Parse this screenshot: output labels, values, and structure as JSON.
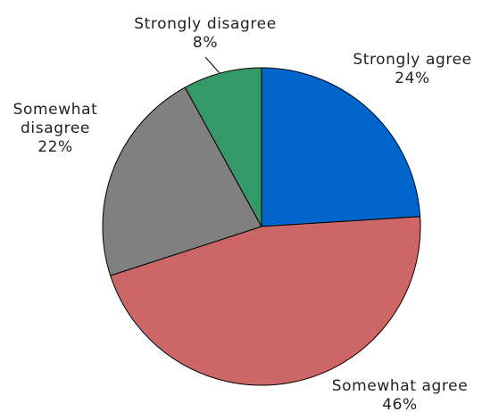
{
  "chart_data": {
    "type": "pie",
    "title": "",
    "legend": "none",
    "slices": [
      {
        "label_lines": [
          "Strongly agree"
        ],
        "percent_label": "24%",
        "value": 24,
        "color": "#0066cc"
      },
      {
        "label_lines": [
          "Somewhat agree"
        ],
        "percent_label": "46%",
        "value": 46,
        "color": "#cd6666"
      },
      {
        "label_lines": [
          "Somewhat",
          "disagree"
        ],
        "percent_label": "22%",
        "value": 22,
        "color": "#808080"
      },
      {
        "label_lines": [
          "Strongly disagree"
        ],
        "percent_label": "8%",
        "value": 8,
        "color": "#339966"
      }
    ]
  }
}
